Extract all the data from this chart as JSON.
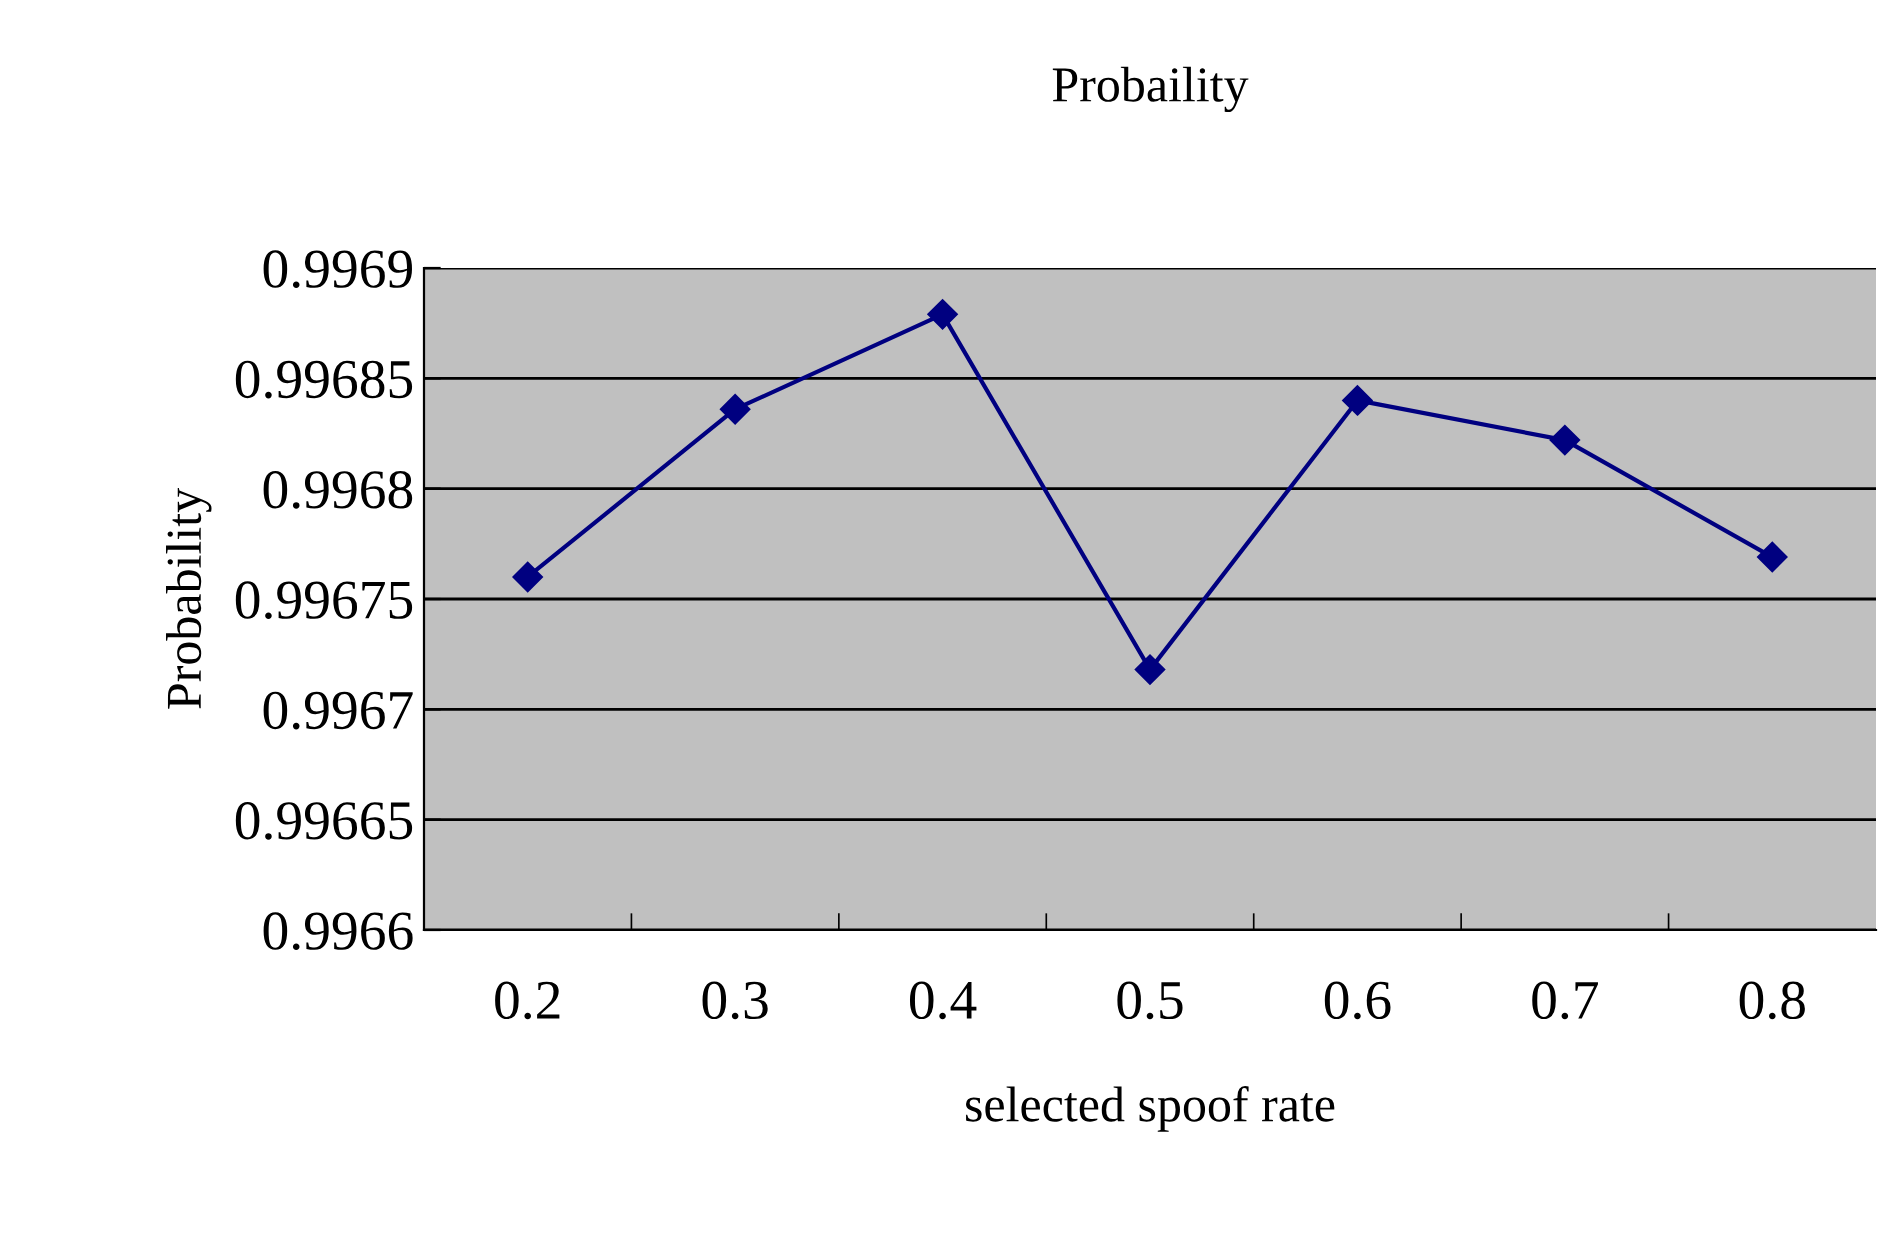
{
  "chart_data": {
    "type": "line",
    "title": "Probaility",
    "xlabel": "selected spoof rate",
    "ylabel": "Probability",
    "categories": [
      "0.2",
      "0.3",
      "0.4",
      "0.5",
      "0.6",
      "0.7",
      "0.8"
    ],
    "series": [
      {
        "color": "#000080",
        "values": [
          0.99676,
          0.996836,
          0.996879,
          0.996718,
          0.99684,
          0.996822,
          0.996769
        ]
      }
    ],
    "ylim": [
      0.9966,
      0.9969
    ],
    "yticks": [
      0.9966,
      0.99665,
      0.9967,
      0.99675,
      0.9968,
      0.99685,
      0.9969
    ],
    "grid": "y",
    "marker": "diamond",
    "line_style": "solid",
    "legend": false
  }
}
